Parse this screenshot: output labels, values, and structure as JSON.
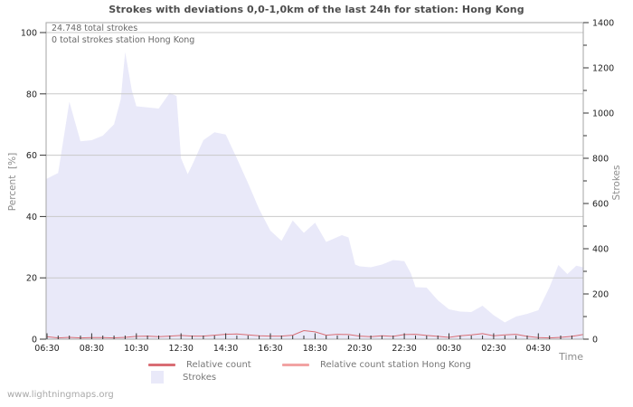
{
  "title": "Strokes with deviations 0,0-1,0km of the last 24h for station: Hong Kong",
  "annotations": {
    "total_strokes": "24.748 total strokes",
    "station_total_strokes": "0 total strokes station Hong Kong"
  },
  "axes": {
    "left_label": "Percent  [%]",
    "right_label": "Strokes",
    "x_label": "Time",
    "left_ticks": [
      0,
      20,
      40,
      60,
      80,
      100
    ],
    "right_ticks": [
      0,
      200,
      400,
      600,
      800,
      1000,
      1200,
      1400
    ],
    "x_ticks": [
      "06:30",
      "08:30",
      "10:30",
      "12:30",
      "14:30",
      "16:30",
      "18:30",
      "20:30",
      "22:30",
      "00:30",
      "02:30",
      "04:30"
    ]
  },
  "legend": {
    "relative_count": "Relative count",
    "relative_count_station": "Relative count station Hong Kong",
    "strokes": "Strokes"
  },
  "colors": {
    "area": "#e9e9f9",
    "relative_count": "#d96d74",
    "relative_count_station": "#f2a3a3",
    "grid": "#c9c9c9",
    "border": "#a6a6a6",
    "tick": "#333333"
  },
  "watermark": "www.lightningmaps.org",
  "chart_data": {
    "type": "area",
    "title": "Strokes with deviations 0,0-1,0km of the last 24h for station: Hong Kong",
    "x_axis_description": "time, 24h window starting 06:30; points are [hours_after_06:30, value]",
    "x_range_hours": [
      0,
      24
    ],
    "x_tick_interval_hours": 2,
    "left_axis": {
      "label": "Percent [%]",
      "range": [
        0,
        100
      ]
    },
    "right_axis": {
      "label": "Strokes",
      "range": [
        0,
        1400
      ]
    },
    "grid": "horizontal-only",
    "legend_position": "bottom",
    "series": [
      {
        "name": "Strokes",
        "style": "area",
        "axis": "right",
        "color": "#e9e9f9",
        "points": [
          [
            0,
            710
          ],
          [
            0.5,
            735
          ],
          [
            1,
            1050
          ],
          [
            1.5,
            875
          ],
          [
            2,
            880
          ],
          [
            2.5,
            900
          ],
          [
            3,
            950
          ],
          [
            3.3,
            1060
          ],
          [
            3.5,
            1270
          ],
          [
            3.8,
            1100
          ],
          [
            4,
            1030
          ],
          [
            4.5,
            1025
          ],
          [
            5,
            1020
          ],
          [
            5.5,
            1090
          ],
          [
            5.8,
            1075
          ],
          [
            6,
            800
          ],
          [
            6.3,
            730
          ],
          [
            6.5,
            770
          ],
          [
            7,
            880
          ],
          [
            7.5,
            915
          ],
          [
            8,
            905
          ],
          [
            8.5,
            800
          ],
          [
            9,
            690
          ],
          [
            9.5,
            575
          ],
          [
            10,
            480
          ],
          [
            10.5,
            435
          ],
          [
            11,
            525
          ],
          [
            11.5,
            470
          ],
          [
            12,
            515
          ],
          [
            12.5,
            430
          ],
          [
            13.2,
            460
          ],
          [
            13.5,
            450
          ],
          [
            13.8,
            330
          ],
          [
            14,
            322
          ],
          [
            14.5,
            318
          ],
          [
            15,
            330
          ],
          [
            15.5,
            350
          ],
          [
            16,
            345
          ],
          [
            16.3,
            290
          ],
          [
            16.5,
            230
          ],
          [
            17,
            228
          ],
          [
            17.5,
            172
          ],
          [
            18,
            132
          ],
          [
            18.5,
            122
          ],
          [
            19,
            120
          ],
          [
            19.5,
            148
          ],
          [
            20,
            106
          ],
          [
            20.5,
            74
          ],
          [
            21,
            100
          ],
          [
            21.5,
            112
          ],
          [
            22,
            128
          ],
          [
            22.5,
            230
          ],
          [
            22.9,
            328
          ],
          [
            23.3,
            288
          ],
          [
            23.7,
            325
          ],
          [
            24,
            318
          ]
        ]
      },
      {
        "name": "Relative count",
        "style": "line",
        "axis": "left",
        "color": "#d96d74",
        "points": [
          [
            0,
            0.8
          ],
          [
            0.5,
            0.4
          ],
          [
            1,
            0.6
          ],
          [
            1.5,
            0.4
          ],
          [
            2,
            0.5
          ],
          [
            2.5,
            0.5
          ],
          [
            3,
            0.4
          ],
          [
            3.5,
            0.6
          ],
          [
            4,
            0.9
          ],
          [
            4.5,
            1.0
          ],
          [
            5,
            0.8
          ],
          [
            5.5,
            1.0
          ],
          [
            6,
            1.2
          ],
          [
            6.5,
            1.0
          ],
          [
            7,
            1.0
          ],
          [
            7.5,
            1.3
          ],
          [
            8,
            1.6
          ],
          [
            8.5,
            1.7
          ],
          [
            9,
            1.4
          ],
          [
            9.5,
            1.1
          ],
          [
            10,
            1.0
          ],
          [
            10.5,
            1.0
          ],
          [
            11,
            1.3
          ],
          [
            11.5,
            2.8
          ],
          [
            12,
            2.4
          ],
          [
            12.5,
            1.3
          ],
          [
            13,
            1.6
          ],
          [
            13.5,
            1.5
          ],
          [
            14,
            1.0
          ],
          [
            14.5,
            0.8
          ],
          [
            15,
            1.1
          ],
          [
            15.5,
            0.9
          ],
          [
            16,
            1.5
          ],
          [
            16.5,
            1.6
          ],
          [
            17,
            1.2
          ],
          [
            17.5,
            0.9
          ],
          [
            18,
            0.6
          ],
          [
            18.5,
            1.1
          ],
          [
            19,
            1.4
          ],
          [
            19.5,
            1.8
          ],
          [
            20,
            1.1
          ],
          [
            20.5,
            1.4
          ],
          [
            21,
            1.6
          ],
          [
            21.5,
            0.9
          ],
          [
            22,
            0.5
          ],
          [
            22.5,
            0.4
          ],
          [
            23,
            0.6
          ],
          [
            23.5,
            0.9
          ],
          [
            24,
            1.5
          ]
        ]
      },
      {
        "name": "Relative count station Hong Kong",
        "style": "line",
        "axis": "left",
        "color": "#f2a3a3",
        "points": [
          [
            0,
            0
          ],
          [
            24,
            0
          ]
        ]
      }
    ]
  }
}
